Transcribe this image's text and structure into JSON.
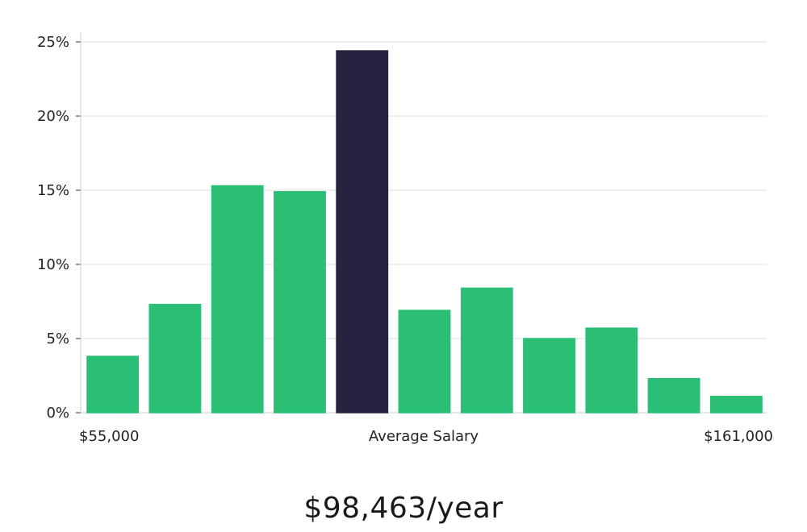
{
  "chart_data": {
    "type": "bar",
    "title": "",
    "xlabel": "",
    "ylabel": "",
    "ylim": [
      0,
      25
    ],
    "y_ticks": [
      "0%",
      "5%",
      "10%",
      "15%",
      "20%",
      "25%"
    ],
    "y_tick_values": [
      0,
      5,
      10,
      15,
      20,
      25
    ],
    "x_axis_labels": {
      "min": "$55,000",
      "center": "Average Salary",
      "max": "$161,000"
    },
    "values": [
      3.8,
      7.3,
      15.3,
      14.9,
      24.4,
      6.9,
      8.4,
      5.0,
      5.7,
      2.3,
      1.1
    ],
    "highlight_index": 4,
    "grid": true,
    "colors": {
      "bar": "#2bbf76",
      "highlight": "#27233f",
      "grid": "#dddddd",
      "axis": "#cccccc"
    }
  },
  "summary": {
    "average_salary_text": "$98,463/year"
  }
}
